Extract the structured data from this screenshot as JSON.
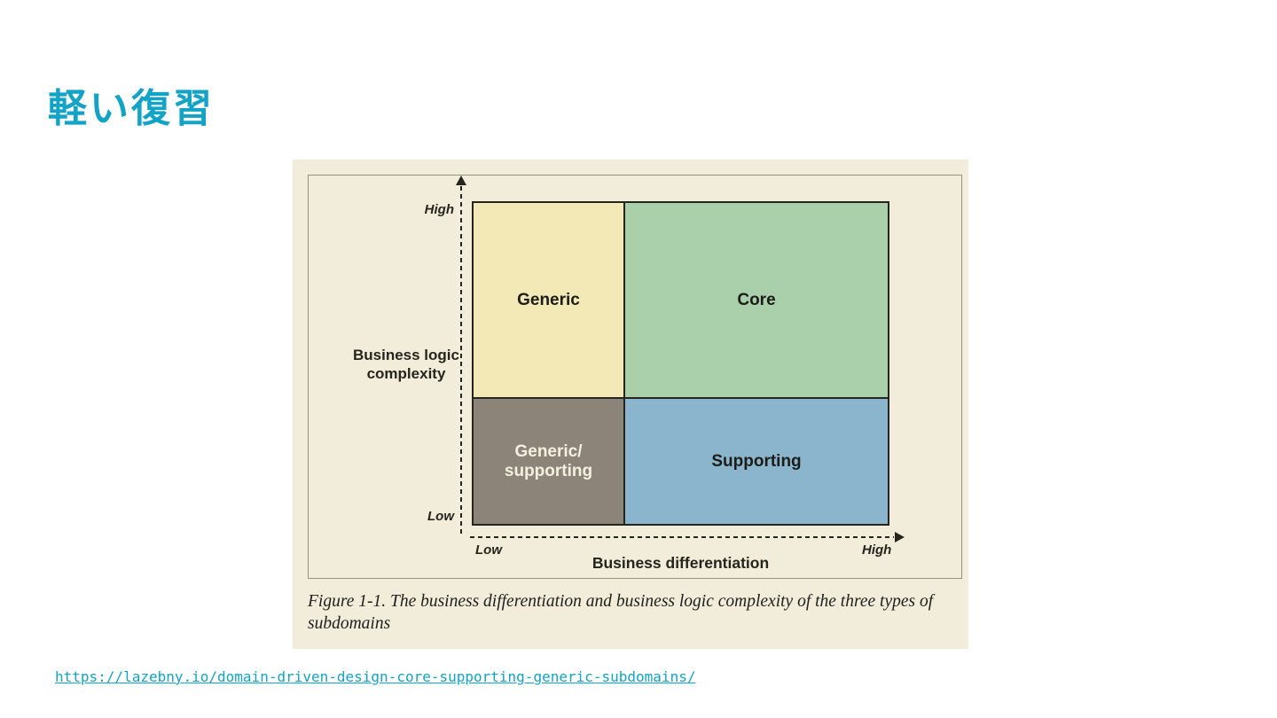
{
  "page": {
    "title": "軽い復習"
  },
  "colors": {
    "accent": "#13a3c6",
    "figure_background": "#f2edda",
    "axis_ink": "#26251d"
  },
  "figure": {
    "background": "#f2edda",
    "axis_y": {
      "label_line1": "Business logic",
      "label_line2": "complexity",
      "top_tick": "High",
      "bottom_tick": "Low"
    },
    "axis_x": {
      "label": "Business differentiation",
      "left_tick": "Low",
      "right_tick": "High"
    },
    "quadrants": {
      "generic": {
        "label": "Generic",
        "color": "#f3e9b6",
        "text_color": "#1d1d18"
      },
      "core": {
        "label": "Core",
        "color": "#a9cfab",
        "text_color": "#1d1d18"
      },
      "generic_supporting": {
        "label_line1": "Generic/",
        "label_line2": "supporting",
        "color": "#8c8479",
        "text_color": "#f4efdf"
      },
      "supporting": {
        "label": "Supporting",
        "color": "#8bb5cc",
        "text_color": "#1d1d18"
      }
    },
    "caption": "Figure 1-1. The business differentiation and business logic complexity of the three types of subdomains"
  },
  "matrix": {
    "x_axis": "Business differentiation",
    "y_axis": "Business logic complexity",
    "cells": [
      {
        "x": "Low",
        "y": "High",
        "label": "Generic"
      },
      {
        "x": "High",
        "y": "High",
        "label": "Core"
      },
      {
        "x": "Low",
        "y": "Low",
        "label": "Generic/supporting"
      },
      {
        "x": "High",
        "y": "Low",
        "label": "Supporting"
      }
    ]
  },
  "footer": {
    "link": "https://lazebny.io/domain-driven-design-core-supporting-generic-subdomains/"
  }
}
